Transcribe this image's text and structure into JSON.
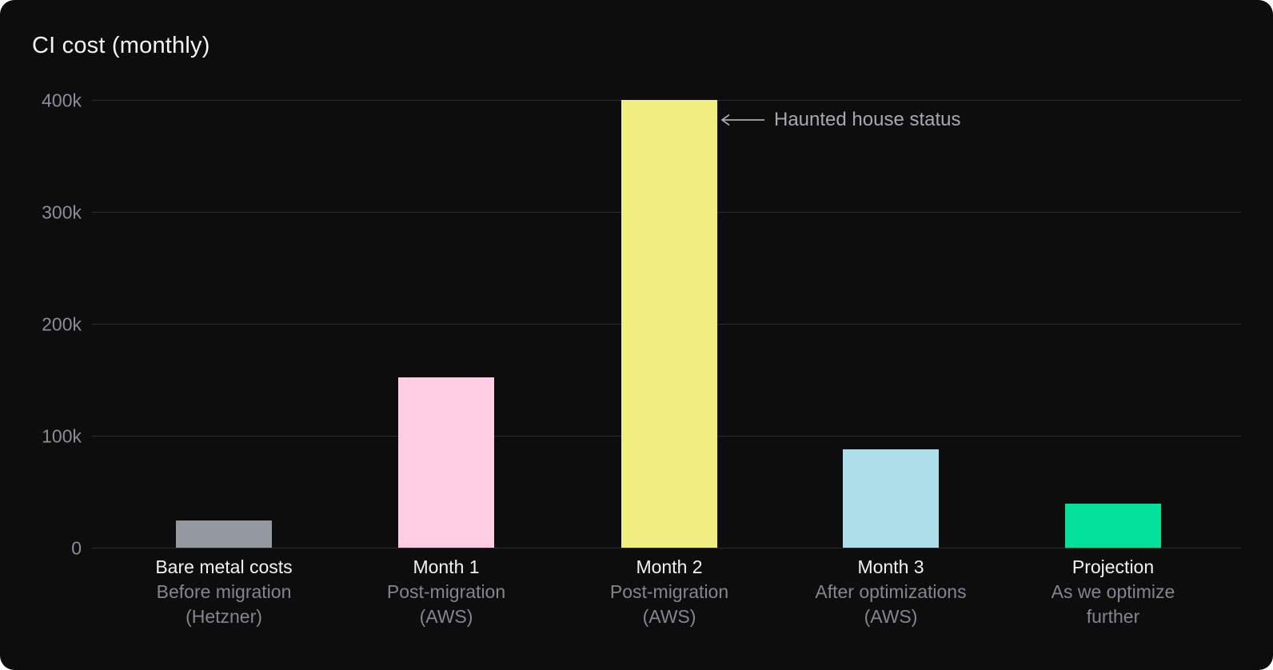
{
  "chart_data": {
    "type": "bar",
    "title": "CI cost (monthly)",
    "categories": [
      "Bare metal costs",
      "Month 1",
      "Month 2",
      "Month 3",
      "Projection"
    ],
    "subtitles": [
      [
        "Before migration",
        "(Hetzner)"
      ],
      [
        "Post-migration",
        "(AWS)"
      ],
      [
        "Post-migration",
        "(AWS)"
      ],
      [
        "After optimizations",
        "(AWS)"
      ],
      [
        "As we optimize",
        "further"
      ]
    ],
    "values": [
      24000,
      152000,
      400000,
      88000,
      39000
    ],
    "bar_colors": [
      "#94989F",
      "#FFCDE3",
      "#F0EE7E",
      "#AEDFE9",
      "#02E09B"
    ],
    "yticks": [
      "0",
      "100k",
      "200k",
      "300k",
      "400k"
    ],
    "ylim": [
      0,
      400000
    ],
    "grid": true,
    "legend": "none",
    "annotation": {
      "text": "Haunted house status",
      "target_category": "Month 2",
      "arrow_direction": "left"
    }
  },
  "colors": {
    "background": "#0D0D0E",
    "title_text": "#F4F4F5",
    "axis_label_text": "#8A8E95",
    "category_text": "#F2F2F3",
    "subtitle_text": "#83868C",
    "annotation_text": "#A6A9AE",
    "gridline": "#2C2C2E"
  }
}
